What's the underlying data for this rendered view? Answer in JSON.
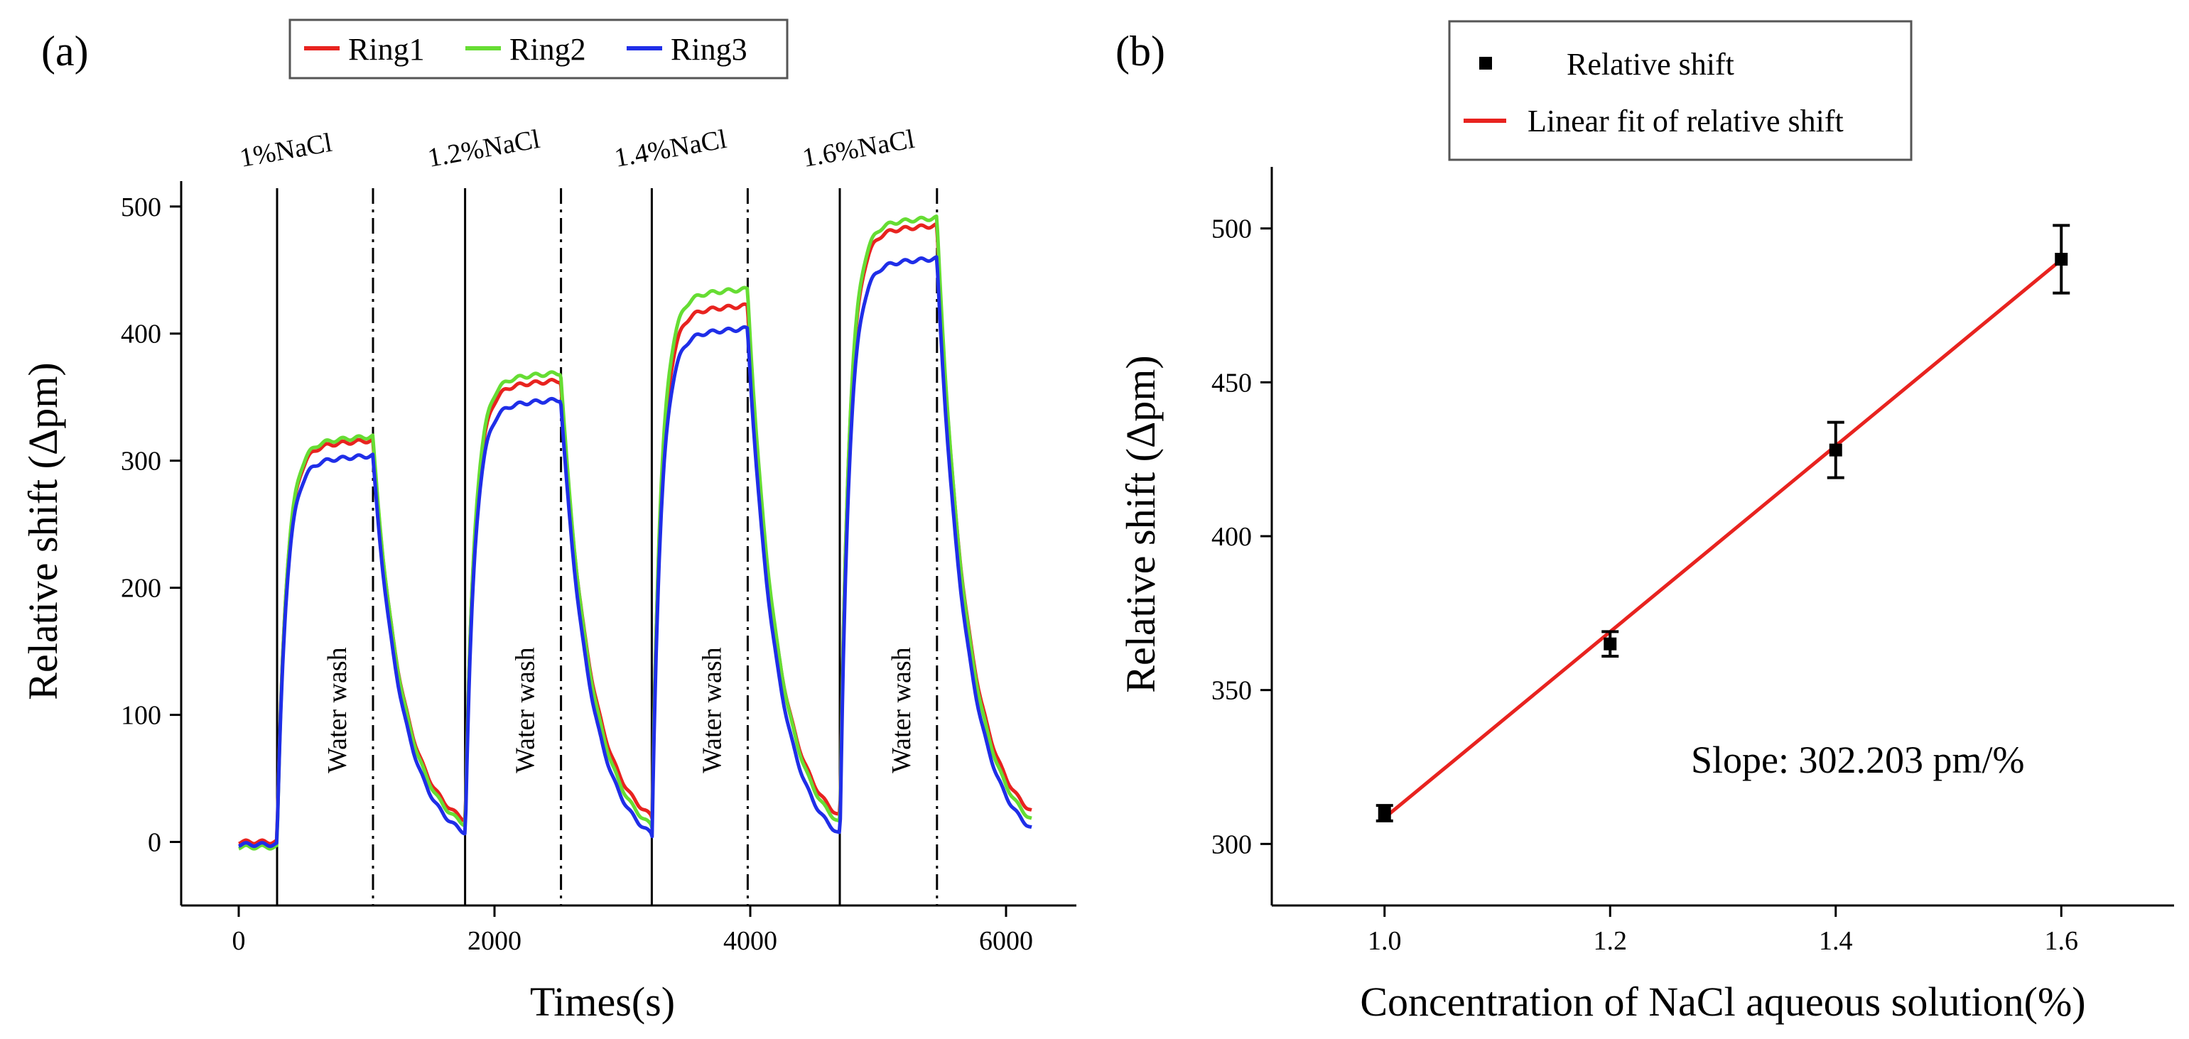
{
  "panel_a_label": "(a)",
  "panel_b_label": "(b)",
  "chart_data": [
    {
      "type": "line",
      "xlabel": "Times(s)",
      "ylabel": "Relative shift (Δpm)",
      "xlim": [
        -450,
        6550
      ],
      "ylim": [
        -50,
        520
      ],
      "xticks": [
        0,
        2000,
        4000,
        6000
      ],
      "yticks": [
        0,
        100,
        200,
        300,
        400,
        500
      ],
      "legend": {
        "placement": "top",
        "entries": [
          "Ring1",
          "Ring2",
          "Ring3"
        ]
      },
      "injections": [
        {
          "label": "1%NaCl",
          "start": 300
        },
        {
          "label": "1.2%NaCl",
          "start": 1770
        },
        {
          "label": "1.4%NaCl",
          "start": 3230
        },
        {
          "label": "1.6%NaCl",
          "start": 4700
        }
      ],
      "washes": [
        {
          "label": "Water wash",
          "time": 1050
        },
        {
          "label": "Water wash",
          "time": 2520
        },
        {
          "label": "Water wash",
          "time": 3980
        },
        {
          "label": "Water wash",
          "time": 5460
        }
      ],
      "solid_marker_times": [
        300,
        1770,
        3230,
        4700
      ],
      "dashdot_marker_times": [
        1050,
        2520,
        3980,
        5460
      ],
      "cycle_starts": [
        300,
        1770,
        3230,
        4700
      ],
      "cycle_period": 1470,
      "end_time": 6200,
      "series": [
        {
          "name": "Ring1",
          "color": "#e8231f",
          "plateaus": [
            313,
            360,
            419,
            482
          ],
          "baselines": [
            0,
            4,
            4,
            2,
            5
          ]
        },
        {
          "name": "Ring2",
          "color": "#66dd33",
          "plateaus": [
            316,
            366,
            432,
            488
          ],
          "baselines": [
            -4,
            0,
            -4,
            -4,
            -2
          ]
        },
        {
          "name": "Ring3",
          "color": "#1f2ee8",
          "plateaus": [
            301,
            345,
            401,
            456
          ],
          "baselines": [
            -2,
            -6,
            -10,
            -12,
            -8
          ]
        }
      ]
    },
    {
      "type": "scatter",
      "xlabel": "Concentration of NaCl aqueous solution(%)",
      "ylabel": "Relative shift (Δpm)",
      "xlim": [
        0.9,
        1.7
      ],
      "ylim": [
        280,
        520
      ],
      "xticks": [
        "1.0",
        "1.2",
        "1.4",
        "1.6"
      ],
      "yticks": [
        300,
        350,
        400,
        450,
        500
      ],
      "points": [
        {
          "x": 1.0,
          "y": 310,
          "err": 2.5
        },
        {
          "x": 1.2,
          "y": 365,
          "err": 4
        },
        {
          "x": 1.4,
          "y": 428,
          "err": 9
        },
        {
          "x": 1.6,
          "y": 490,
          "err": 11
        }
      ],
      "fit": {
        "slope": 302.203,
        "x_range": [
          1.0,
          1.6
        ],
        "y_start": 308.5,
        "color": "#e8231f"
      },
      "legend": {
        "placement": "top",
        "entries": [
          "Relative shift",
          "Linear fit of relative shift"
        ]
      },
      "annotation": "Slope: 302.203 pm/%"
    }
  ]
}
